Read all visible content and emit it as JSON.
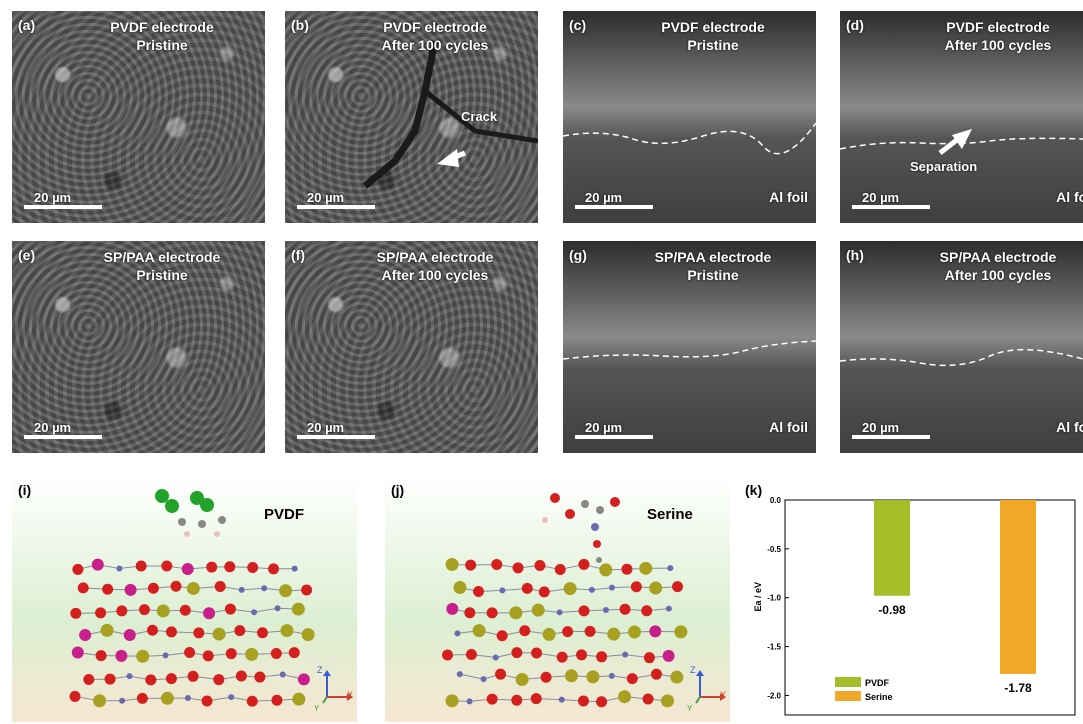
{
  "panels": {
    "a": {
      "label": "(a)",
      "line1": "PVDF electrode",
      "line2": "Pristine",
      "scale": "20 µm"
    },
    "b": {
      "label": "(b)",
      "line1": "PVDF electrode",
      "line2": "After 100 cycles",
      "scale": "20 µm",
      "note": "Crack"
    },
    "c": {
      "label": "(c)",
      "line1": "PVDF electrode",
      "line2": "Pristine",
      "scale": "20 µm",
      "foil": "Al foil"
    },
    "d": {
      "label": "(d)",
      "line1": "PVDF electrode",
      "line2": "After 100 cycles",
      "scale": "20 µm",
      "foil": "Al foil",
      "note": "Separation"
    },
    "e": {
      "label": "(e)",
      "line1": "SP/PAA electrode",
      "line2": "Pristine",
      "scale": "20 µm"
    },
    "f": {
      "label": "(f)",
      "line1": "SP/PAA electrode",
      "line2": "After 100 cycles",
      "scale": "20 µm"
    },
    "g": {
      "label": "(g)",
      "line1": "SP/PAA electrode",
      "line2": "Pristine",
      "scale": "20 µm",
      "foil": "Al foil"
    },
    "h": {
      "label": "(h)",
      "line1": "SP/PAA electrode",
      "line2": "After 100 cycles",
      "scale": "20 µm",
      "foil": "Al foil"
    },
    "i": {
      "label": "(i)",
      "name": "PVDF",
      "axis_z": "Z",
      "axis_x": "X",
      "axis_y": "Y"
    },
    "j": {
      "label": "(j)",
      "name": "Serine",
      "axis_z": "Z",
      "axis_x": "X",
      "axis_y": "Y"
    },
    "k": {
      "label": "(k)"
    }
  },
  "chart_data": {
    "type": "bar",
    "categories": [
      "PVDF",
      "Serine"
    ],
    "values": [
      -0.98,
      -1.78
    ],
    "data_labels": [
      "-0.98",
      "-1.78"
    ],
    "colors": [
      "#a6bd2a",
      "#f0a826"
    ],
    "ylabel": "Ea / eV",
    "ylim": [
      -2.2,
      0.0
    ],
    "yticks": [
      0.0,
      -0.5,
      -1.0,
      -1.5,
      -2.0
    ],
    "ytick_labels": [
      "0.0",
      "-0.5",
      "-1.0",
      "-1.5",
      "-2.0"
    ],
    "legend": [
      {
        "name": "PVDF",
        "color": "#a6bd2a"
      },
      {
        "name": "Serine",
        "color": "#f0a826"
      }
    ],
    "legend_position": "bottom-left"
  }
}
